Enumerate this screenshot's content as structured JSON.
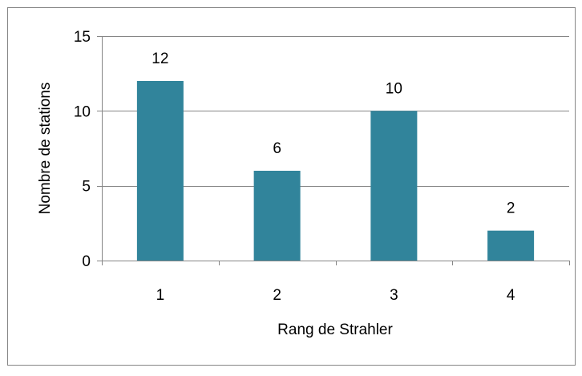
{
  "chart_data": {
    "type": "bar",
    "categories": [
      "1",
      "2",
      "3",
      "4"
    ],
    "values": [
      12,
      6,
      10,
      2
    ],
    "data_labels": [
      "12",
      "6",
      "10",
      "2"
    ],
    "title": "",
    "xlabel": "Rang de Strahler",
    "ylabel": "Nombre de stations",
    "ylim": [
      0,
      15
    ],
    "yticks": [
      "0",
      "5",
      "10",
      "15"
    ],
    "grid": true,
    "legend": "none",
    "bar_color": "#31849b",
    "grid_color": "#868686",
    "border_color": "#868686"
  }
}
